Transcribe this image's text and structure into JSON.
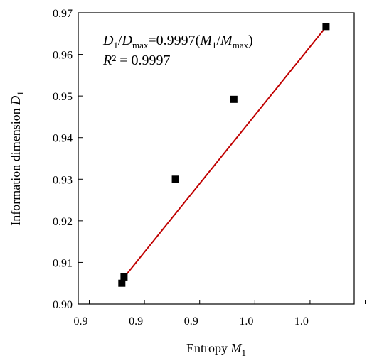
{
  "chart_data": {
    "type": "scatter",
    "xlabel": {
      "text": "Entropy ",
      "var": "M",
      "sub": "1"
    },
    "ylabel": {
      "text": "Information  dimension ",
      "var": "D",
      "sub": "1"
    },
    "xlim": [
      0.918,
      0.968
    ],
    "ylim": [
      0.9,
      0.97
    ],
    "x_ticks": [
      0.92,
      0.93,
      0.94,
      0.95,
      0.96,
      0.97
    ],
    "x_tick_labels": [
      "0.9",
      "0.9",
      "0.9",
      "1.0",
      "1.0"
    ],
    "y_ticks": [
      0.9,
      0.91,
      0.92,
      0.93,
      0.94,
      0.95,
      0.96,
      0.97
    ],
    "y_tick_labels": [
      "0.90",
      "0.91",
      "0.92",
      "0.93",
      "0.94",
      "0.95",
      "0.96",
      "0.97"
    ],
    "series": [
      {
        "points": [
          {
            "x": 0.9259,
            "y": 0.905
          },
          {
            "x": 0.9263,
            "y": 0.9065
          },
          {
            "x": 0.9356,
            "y": 0.93
          },
          {
            "x": 0.9462,
            "y": 0.9492
          },
          {
            "x": 0.9629,
            "y": 0.9667
          }
        ],
        "marker": "square",
        "color": "#000000"
      }
    ],
    "fit_line": {
      "x": [
        0.9263,
        0.9629
      ],
      "y": [
        0.9064,
        0.9666
      ],
      "color": "#c00000"
    },
    "annotations": {
      "equation": {
        "D": "D",
        "sub1": "1",
        "slash": "/",
        "Dmax": "D",
        "max1": "max",
        "eq": "=0.9997(",
        "M": "M",
        "sub2": "1",
        "slash2": "/",
        "Mmax": "M",
        "max2": "max",
        "close": ")"
      },
      "r2": {
        "R": "R",
        "rest": "² = 0.9997"
      }
    },
    "grid": false,
    "legend": "none"
  }
}
